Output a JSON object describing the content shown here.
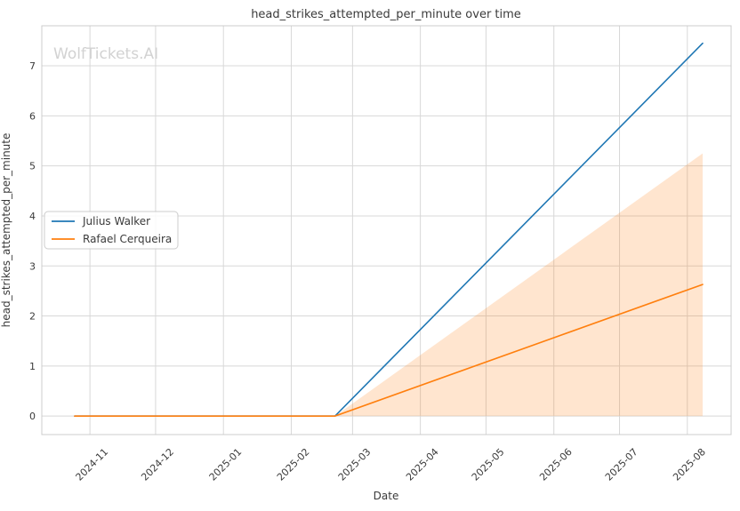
{
  "chart_data": {
    "type": "line",
    "title": "head_strikes_attempted_per_minute over time",
    "xlabel": "Date",
    "ylabel": "head_strikes_attempted_per_minute",
    "watermark": "WolfTickets.AI",
    "grid": true,
    "legend_position": "center-left",
    "x_range": [
      "2024-10-10",
      "2025-08-21"
    ],
    "y_range": [
      -0.37,
      7.8
    ],
    "y_ticks": [
      "0",
      "1",
      "2",
      "3",
      "4",
      "5",
      "6",
      "7"
    ],
    "x_ticks": [
      {
        "label": "2024-11",
        "date": "2024-11-01"
      },
      {
        "label": "2024-12",
        "date": "2024-12-01"
      },
      {
        "label": "2025-01",
        "date": "2025-01-01"
      },
      {
        "label": "2025-02",
        "date": "2025-02-01"
      },
      {
        "label": "2025-03",
        "date": "2025-03-01"
      },
      {
        "label": "2025-04",
        "date": "2025-04-01"
      },
      {
        "label": "2025-05",
        "date": "2025-05-01"
      },
      {
        "label": "2025-06",
        "date": "2025-06-01"
      },
      {
        "label": "2025-07",
        "date": "2025-07-01"
      },
      {
        "label": "2025-08",
        "date": "2025-08-01"
      }
    ],
    "series": [
      {
        "name": "Julius Walker",
        "color": "#1f77b4",
        "points": [
          [
            "2024-10-25",
            0
          ],
          [
            "2025-02-21",
            0
          ],
          [
            "2025-08-08",
            7.45
          ]
        ]
      },
      {
        "name": "Rafael Cerqueira",
        "color": "#ff7f0e",
        "points": [
          [
            "2024-10-25",
            0
          ],
          [
            "2025-02-21",
            0
          ],
          [
            "2025-08-08",
            2.63
          ]
        ]
      }
    ],
    "band": {
      "for_series": "Rafael Cerqueira",
      "color": "#ff7f0e",
      "alpha": 0.2,
      "points": [
        {
          "x": "2025-02-21",
          "lower": 0,
          "upper": 0
        },
        {
          "x": "2025-08-08",
          "lower": 0,
          "upper": 5.25
        }
      ]
    },
    "colors": {
      "grid": "#d8d8d8",
      "spine": "#cccccc",
      "text": "#3a3a3a",
      "tick_text": "#3a3a3a",
      "watermark": "#d2d2d2",
      "legend_border": "#cccccc",
      "legend_bg": "#ffffff"
    }
  }
}
